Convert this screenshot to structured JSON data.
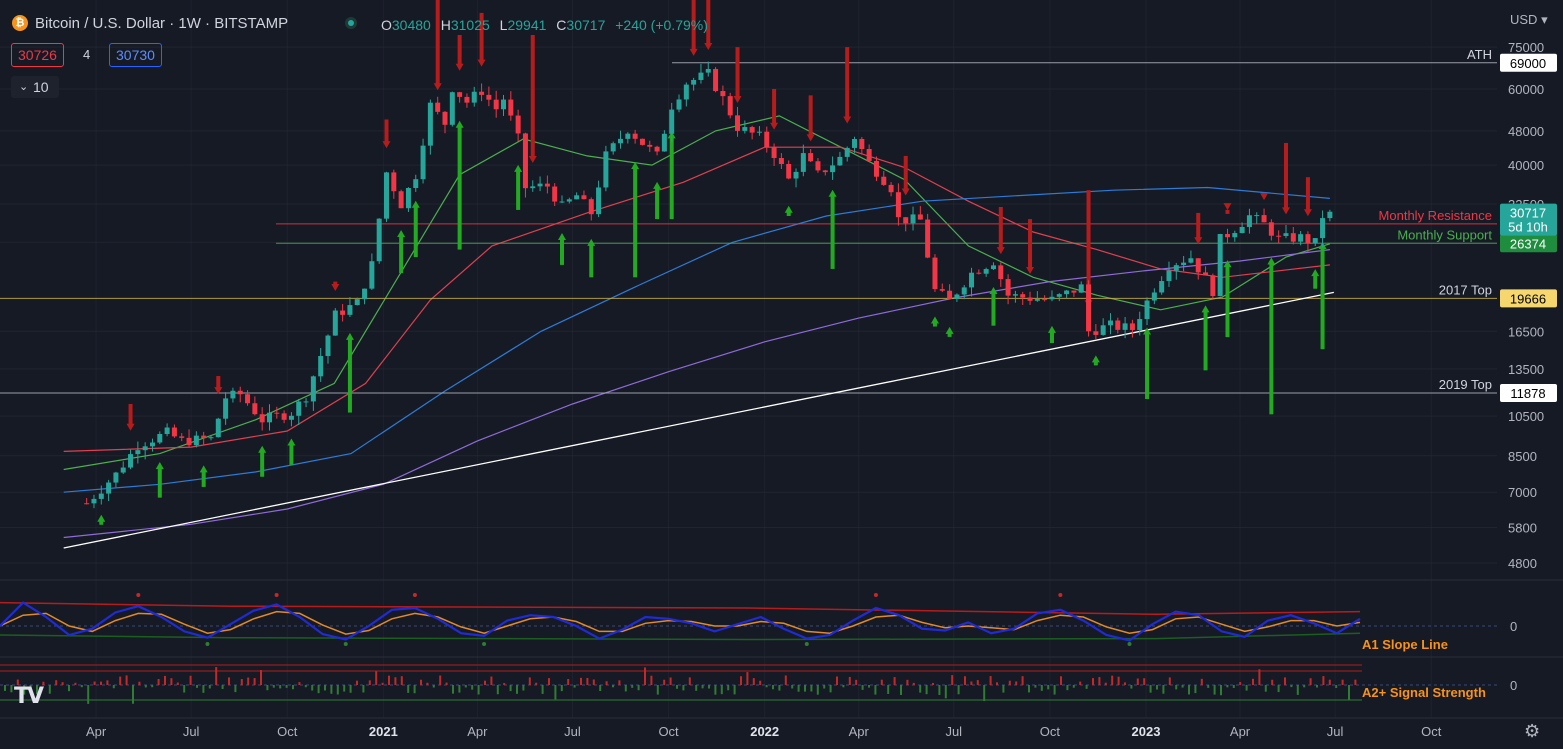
{
  "header": {
    "title": "Bitcoin / U.S. Dollar · 1W · BITSTAMP",
    "logo_glyph": "₿",
    "ohlc": {
      "o_label": "O",
      "o": "30480",
      "h_label": "H",
      "h": "31025",
      "l_label": "L",
      "l": "29941",
      "c_label": "C",
      "c": "30717",
      "change": "+240 (+0.79%)"
    },
    "bid": "30726",
    "spread": "4",
    "ask": "30730",
    "interval_value": "10",
    "currency": "USD"
  },
  "colors": {
    "background": "#161a25",
    "up": "#26a69a",
    "down": "#f23645",
    "grid": "#2a2e39",
    "ema_green": "#4caf50",
    "ema_red": "#e04050",
    "ema_blue": "#2e7bd6",
    "ema_purple": "#8e6bd8",
    "signal_up": "#22ab22",
    "signal_down": "#b71c1c",
    "yellow": "#f5d76e"
  },
  "chart_data": {
    "type": "candlestick",
    "symbol": "Bitcoin / U.S. Dollar",
    "timeframe": "1W",
    "exchange": "BITSTAMP",
    "y_scale": "log",
    "ylim": [
      4200,
      90000
    ],
    "y_ticks": [
      75000,
      60000,
      48000,
      40000,
      32500,
      26500,
      16500,
      13500,
      10500,
      8500,
      7000,
      5800,
      4800
    ],
    "x_ticks": [
      {
        "label": "Apr",
        "date": "2020-04-01"
      },
      {
        "label": "Jul",
        "date": "2020-07-01"
      },
      {
        "label": "Oct",
        "date": "2020-10-01"
      },
      {
        "label": "2021",
        "date": "2021-01-01",
        "bold": true
      },
      {
        "label": "Apr",
        "date": "2021-04-01"
      },
      {
        "label": "Jul",
        "date": "2021-07-01"
      },
      {
        "label": "Oct",
        "date": "2021-10-01"
      },
      {
        "label": "2022",
        "date": "2022-01-01",
        "bold": true
      },
      {
        "label": "Apr",
        "date": "2022-04-01"
      },
      {
        "label": "Jul",
        "date": "2022-07-01"
      },
      {
        "label": "Oct",
        "date": "2022-10-01"
      },
      {
        "label": "2023",
        "date": "2023-01-01",
        "bold": true
      },
      {
        "label": "Apr",
        "date": "2023-04-01"
      },
      {
        "label": "Jul",
        "date": "2023-07-01"
      },
      {
        "label": "Oct",
        "date": "2023-10-01"
      }
    ],
    "price_path": [
      [
        "2020-03-23",
        6600
      ],
      [
        "2020-04-20",
        7700
      ],
      [
        "2020-05-11",
        9000
      ],
      [
        "2020-06-08",
        9600
      ],
      [
        "2020-06-22",
        9200
      ],
      [
        "2020-07-20",
        9300
      ],
      [
        "2020-08-03",
        11600
      ],
      [
        "2020-08-17",
        11800
      ],
      [
        "2020-09-07",
        10300
      ],
      [
        "2020-10-05",
        10700
      ],
      [
        "2020-10-19",
        11700
      ],
      [
        "2020-11-02",
        14500
      ],
      [
        "2020-11-16",
        18000
      ],
      [
        "2020-12-07",
        19200
      ],
      [
        "2020-12-21",
        23500
      ],
      [
        "2021-01-04",
        38500
      ],
      [
        "2021-01-18",
        32500
      ],
      [
        "2021-02-01",
        38000
      ],
      [
        "2021-02-15",
        55000
      ],
      [
        "2021-03-01",
        50000
      ],
      [
        "2021-03-08",
        60500
      ],
      [
        "2021-03-22",
        56000
      ],
      [
        "2021-04-05",
        59500
      ],
      [
        "2021-04-19",
        54000
      ],
      [
        "2021-04-26",
        57000
      ],
      [
        "2021-05-10",
        46000
      ],
      [
        "2021-05-17",
        35500
      ],
      [
        "2021-06-07",
        35800
      ],
      [
        "2021-06-21",
        32000
      ],
      [
        "2021-07-05",
        34000
      ],
      [
        "2021-07-19",
        31000
      ],
      [
        "2021-08-02",
        42000
      ],
      [
        "2021-08-23",
        48500
      ],
      [
        "2021-09-06",
        45000
      ],
      [
        "2021-09-20",
        42000
      ],
      [
        "2021-10-04",
        55000
      ],
      [
        "2021-10-18",
        62000
      ],
      [
        "2021-11-08",
        65000
      ],
      [
        "2021-11-22",
        57000
      ],
      [
        "2021-12-06",
        49000
      ],
      [
        "2021-12-27",
        46500
      ],
      [
        "2022-01-10",
        42500
      ],
      [
        "2022-01-24",
        37000
      ],
      [
        "2022-02-07",
        42000
      ],
      [
        "2022-02-21",
        38000
      ],
      [
        "2022-03-14",
        41500
      ],
      [
        "2022-03-28",
        46500
      ],
      [
        "2022-04-11",
        40500
      ],
      [
        "2022-05-02",
        35500
      ],
      [
        "2022-05-09",
        30000
      ],
      [
        "2022-05-30",
        29800
      ],
      [
        "2022-06-13",
        20500
      ],
      [
        "2022-06-27",
        19400
      ],
      [
        "2022-07-18",
        22500
      ],
      [
        "2022-08-08",
        24000
      ],
      [
        "2022-08-22",
        20000
      ],
      [
        "2022-09-12",
        19700
      ],
      [
        "2022-10-03",
        19500
      ],
      [
        "2022-10-31",
        20900
      ],
      [
        "2022-11-07",
        16500
      ],
      [
        "2022-11-28",
        17000
      ],
      [
        "2022-12-19",
        16700
      ],
      [
        "2023-01-09",
        20800
      ],
      [
        "2023-01-23",
        23500
      ],
      [
        "2023-02-13",
        24500
      ],
      [
        "2023-03-06",
        20500
      ],
      [
        "2023-03-13",
        26900
      ],
      [
        "2023-03-27",
        28500
      ],
      [
        "2023-04-10",
        30500
      ],
      [
        "2023-04-24",
        29200
      ],
      [
        "2023-05-08",
        27000
      ],
      [
        "2023-05-29",
        27200
      ],
      [
        "2023-06-12",
        26400
      ],
      [
        "2023-06-19",
        30500
      ],
      [
        "2023-06-26",
        30717
      ]
    ],
    "current": {
      "open": 30480,
      "high": 31025,
      "low": 29941,
      "close": 30717,
      "change": "+240 (+0.79%)",
      "countdown": "5d 10h"
    },
    "lines": [
      {
        "name": "ATH",
        "value": 69000,
        "color": "#b2b5be",
        "label_color": "#d1d4dc",
        "box": "#ffffff",
        "box_text": "#000000"
      },
      {
        "name": "Monthly Resistance",
        "value": 29239,
        "color": "#f23645",
        "label_color": "#f23645",
        "box": "#f23645",
        "box_text": "#ffffff"
      },
      {
        "name": "Monthly Support",
        "value": 26374,
        "color": "#4caf50",
        "label_color": "#4caf50",
        "box": "#1e8e3e",
        "box_text": "#ffffff"
      },
      {
        "name": "2017 Top",
        "value": 19666,
        "color": "#c8b040",
        "label_color": "#d1d4dc",
        "box": "#f5d76e",
        "box_text": "#000000"
      },
      {
        "name": "2019 Top",
        "value": 11878,
        "color": "#b2b5be",
        "label_color": "#d1d4dc",
        "box": "#ffffff",
        "box_text": "#000000"
      }
    ],
    "last_price_label": {
      "value": "30717",
      "countdown": "5d 10h"
    },
    "trendline": {
      "from": [
        "2020-03-01",
        5200
      ],
      "to": [
        "2023-06-26",
        20300
      ]
    },
    "emas": [
      {
        "color": "#4caf50",
        "path": [
          [
            "2020-03-01",
            7900
          ],
          [
            "2020-06-01",
            8600
          ],
          [
            "2020-09-01",
            10300
          ],
          [
            "2020-11-15",
            12500
          ],
          [
            "2021-01-15",
            22000
          ],
          [
            "2021-03-15",
            38000
          ],
          [
            "2021-05-15",
            46000
          ],
          [
            "2021-07-15",
            42000
          ],
          [
            "2021-09-15",
            40000
          ],
          [
            "2021-11-15",
            48000
          ],
          [
            "2022-01-15",
            52000
          ],
          [
            "2022-03-15",
            44000
          ],
          [
            "2022-05-15",
            37000
          ],
          [
            "2022-07-15",
            26000
          ],
          [
            "2022-09-15",
            22000
          ],
          [
            "2022-11-15",
            20000
          ],
          [
            "2023-01-15",
            18500
          ],
          [
            "2023-03-15",
            19800
          ],
          [
            "2023-05-15",
            24500
          ],
          [
            "2023-06-26",
            26300
          ]
        ]
      },
      {
        "color": "#e04050",
        "path": [
          [
            "2020-03-01",
            8700
          ],
          [
            "2020-07-01",
            8900
          ],
          [
            "2020-10-01",
            9700
          ],
          [
            "2020-12-15",
            12500
          ],
          [
            "2021-02-15",
            19500
          ],
          [
            "2021-04-15",
            26000
          ],
          [
            "2021-07-15",
            31000
          ],
          [
            "2021-10-15",
            36500
          ],
          [
            "2022-01-01",
            44000
          ],
          [
            "2022-03-15",
            44000
          ],
          [
            "2022-05-15",
            39500
          ],
          [
            "2022-07-15",
            33000
          ],
          [
            "2022-09-15",
            28000
          ],
          [
            "2022-11-15",
            25500
          ],
          [
            "2023-01-15",
            23000
          ],
          [
            "2023-03-15",
            22000
          ],
          [
            "2023-06-26",
            23500
          ]
        ]
      },
      {
        "color": "#2e7bd6",
        "path": [
          [
            "2020-03-01",
            7000
          ],
          [
            "2020-06-01",
            7300
          ],
          [
            "2020-09-01",
            7800
          ],
          [
            "2020-12-01",
            8600
          ],
          [
            "2021-03-01",
            12000
          ],
          [
            "2021-06-01",
            16500
          ],
          [
            "2021-09-01",
            21000
          ],
          [
            "2021-12-01",
            26500
          ],
          [
            "2022-03-01",
            30500
          ],
          [
            "2022-06-01",
            33000
          ],
          [
            "2022-09-01",
            34000
          ],
          [
            "2022-12-01",
            35000
          ],
          [
            "2023-03-01",
            35500
          ],
          [
            "2023-06-26",
            33500
          ]
        ]
      },
      {
        "color": "#8e6bd8",
        "path": [
          [
            "2020-03-01",
            5500
          ],
          [
            "2020-07-01",
            5900
          ],
          [
            "2020-10-01",
            6400
          ],
          [
            "2021-01-01",
            7300
          ],
          [
            "2021-04-01",
            9200
          ],
          [
            "2021-07-01",
            11200
          ],
          [
            "2021-10-01",
            13300
          ],
          [
            "2022-01-01",
            15600
          ],
          [
            "2022-04-01",
            17700
          ],
          [
            "2022-07-01",
            19700
          ],
          [
            "2022-10-01",
            21500
          ],
          [
            "2023-01-01",
            22800
          ],
          [
            "2023-04-01",
            24000
          ],
          [
            "2023-06-26",
            25500
          ]
        ]
      }
    ],
    "signals_up": [
      [
        "2020-04-06",
        6700
      ],
      [
        "2020-06-01",
        6800
      ],
      [
        "2020-07-13",
        7200
      ],
      [
        "2020-09-07",
        7600
      ],
      [
        "2020-10-05",
        8100
      ],
      [
        "2020-11-30",
        10700
      ],
      [
        "2021-01-18",
        22500
      ],
      [
        "2021-02-01",
        24500
      ],
      [
        "2021-03-15",
        25500
      ],
      [
        "2021-05-10",
        31500
      ],
      [
        "2021-06-21",
        23500
      ],
      [
        "2021-07-19",
        22000
      ],
      [
        "2021-08-30",
        22000
      ],
      [
        "2021-09-20",
        30000
      ],
      [
        "2021-10-04",
        30000
      ],
      [
        "2022-01-24",
        30500
      ],
      [
        "2022-03-07",
        23000
      ],
      [
        "2022-06-13",
        20000
      ],
      [
        "2022-06-27",
        20000
      ],
      [
        "2022-08-08",
        17000
      ],
      [
        "2022-10-03",
        15500
      ],
      [
        "2022-11-14",
        15000
      ],
      [
        "2023-01-02",
        11500
      ],
      [
        "2023-02-27",
        13400
      ],
      [
        "2023-03-20",
        16000
      ],
      [
        "2023-05-01",
        10600
      ],
      [
        "2023-06-12",
        20700
      ],
      [
        "2023-06-19",
        15000
      ]
    ],
    "signals_down": [
      [
        "2020-05-04",
        11200
      ],
      [
        "2020-07-27",
        13000
      ],
      [
        "2020-11-16",
        21500
      ],
      [
        "2021-01-04",
        51000
      ],
      [
        "2021-02-22",
        100000
      ],
      [
        "2021-03-15",
        80000
      ],
      [
        "2021-04-05",
        90000
      ],
      [
        "2021-05-24",
        80000
      ],
      [
        "2021-10-25",
        110000
      ],
      [
        "2021-11-08",
        110000
      ],
      [
        "2021-12-06",
        75000
      ],
      [
        "2022-01-10",
        60000
      ],
      [
        "2022-02-14",
        58000
      ],
      [
        "2022-03-21",
        75000
      ],
      [
        "2022-05-16",
        42000
      ],
      [
        "2022-08-15",
        32000
      ],
      [
        "2022-09-12",
        30000
      ],
      [
        "2022-11-07",
        35000
      ],
      [
        "2023-02-20",
        31000
      ],
      [
        "2023-03-20",
        31500
      ],
      [
        "2023-04-24",
        34500
      ],
      [
        "2023-05-15",
        45000
      ],
      [
        "2023-06-05",
        37500
      ]
    ],
    "oscillator_a1": {
      "name": "A1 Slope Line",
      "zero_label": "0",
      "label_color": "#f7931a",
      "blue": [
        0,
        2.6,
        1.0,
        -1.0,
        -0.3,
        1.5,
        2.2,
        1.0,
        -0.6,
        -1.3,
        0.2,
        1.7,
        2.4,
        1.0,
        -0.9,
        -1.5,
        0.0,
        1.8,
        2.0,
        0.8,
        -0.8,
        -1.1,
        0.6,
        1.2,
        1.0,
        0.0,
        -1.4,
        -0.4,
        1.0,
        0.8,
        0.3,
        -0.6,
        0.2,
        1.0,
        -0.3,
        -1.4,
        -1.0,
        0.6,
        2.0,
        1.2,
        -0.3,
        -0.5,
        0.4,
        -0.8,
        -0.3,
        1.4,
        1.8,
        0.6,
        -1.0,
        -1.6,
        0.2,
        1.6,
        1.2,
        -0.6,
        -1.2,
        0.6,
        1.2,
        0.3,
        -0.8,
        0.8
      ],
      "orange": [
        0,
        1.2,
        1.4,
        0.0,
        -0.6,
        0.6,
        1.4,
        1.3,
        0.2,
        -0.8,
        -0.4,
        0.8,
        1.6,
        1.4,
        0.1,
        -0.9,
        -0.5,
        0.8,
        1.4,
        1.0,
        -0.1,
        -0.8,
        0.0,
        0.8,
        1.0,
        0.5,
        -0.6,
        -0.6,
        0.3,
        0.6,
        0.5,
        0.0,
        0.0,
        0.5,
        0.3,
        -0.6,
        -0.8,
        0.0,
        1.0,
        1.2,
        0.4,
        -0.2,
        0.0,
        -0.2,
        -0.4,
        0.6,
        1.2,
        1.0,
        -0.1,
        -0.8,
        -0.4,
        0.8,
        1.0,
        0.2,
        -0.6,
        -0.1,
        0.6,
        0.6,
        0.0,
        0.4
      ],
      "red_line": [
        [
          0,
          2.6
        ],
        [
          0.17,
          2.2
        ],
        [
          0.55,
          2.0
        ],
        [
          0.85,
          1.3
        ],
        [
          1.0,
          1.6
        ]
      ],
      "green_line": [
        [
          0,
          -1.0
        ],
        [
          0.17,
          -1.3
        ],
        [
          0.55,
          -1.5
        ],
        [
          0.85,
          -1.4
        ],
        [
          1.0,
          -0.8
        ]
      ]
    },
    "oscillator_a2": {
      "name": "A2+ Signal Strength",
      "zero_label": "0",
      "label_color": "#f7931a"
    }
  }
}
